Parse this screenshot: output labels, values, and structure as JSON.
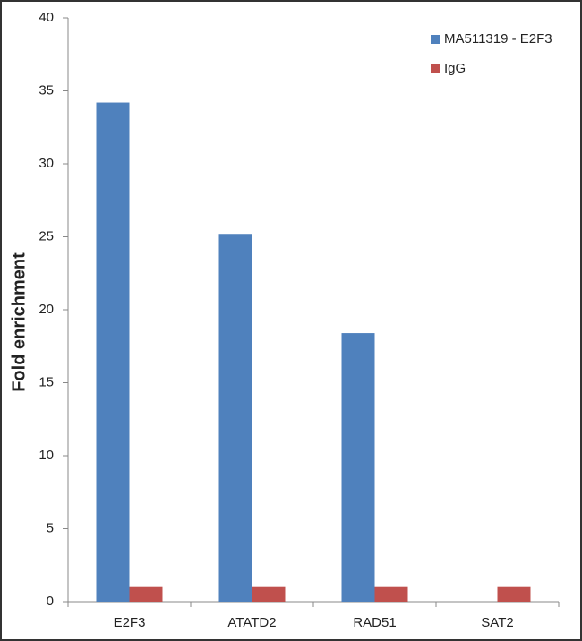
{
  "chart_data": {
    "type": "bar",
    "y_label": "Fold enrichment",
    "categories": [
      "E2F3",
      "ATATD2",
      "RAD51",
      "SAT2"
    ],
    "series": [
      {
        "name": "MA511319 - E2F3",
        "color": "#4f81bd",
        "values": [
          34.2,
          25.2,
          18.4,
          0
        ]
      },
      {
        "name": "IgG",
        "color": "#c0504d",
        "values": [
          1,
          1,
          1,
          1
        ]
      }
    ],
    "ylim": [
      0,
      40
    ],
    "yticks": [
      0,
      5,
      10,
      15,
      20,
      25,
      30,
      35,
      40
    ],
    "grid": false,
    "legend": "top-right"
  }
}
